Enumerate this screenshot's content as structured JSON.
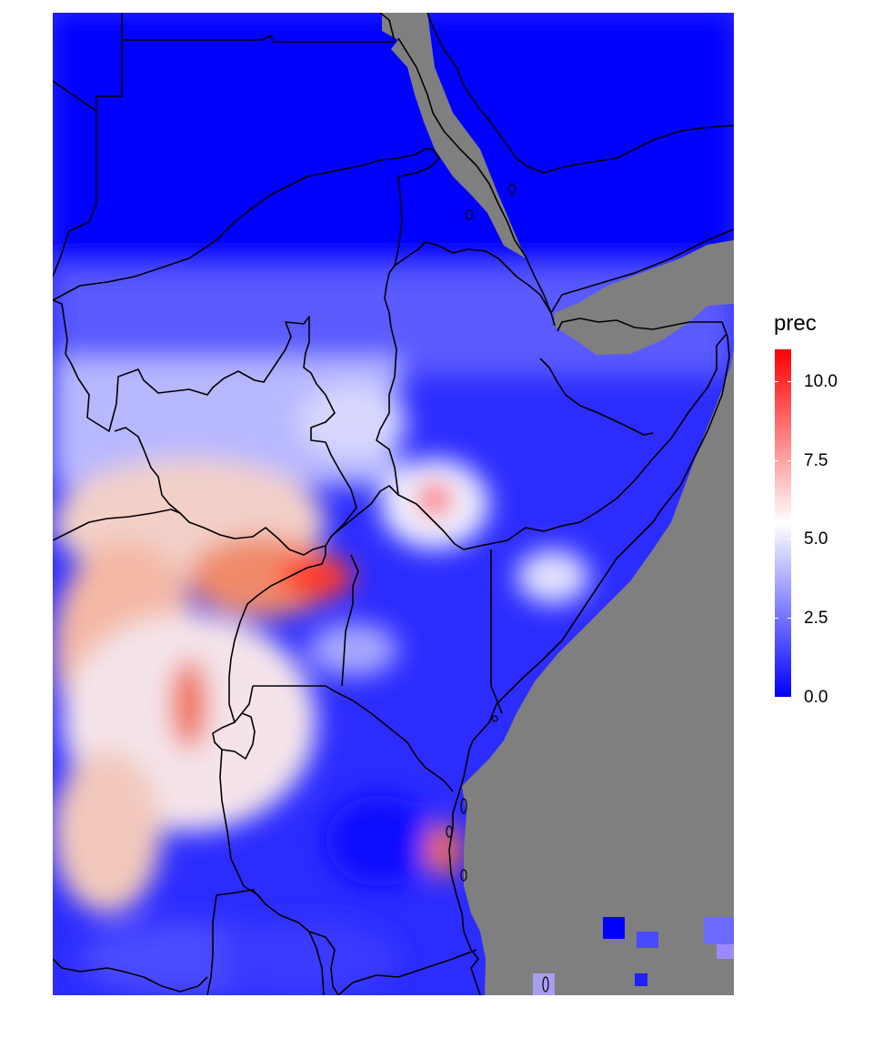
{
  "legend": {
    "title": "prec",
    "min": 0.0,
    "max": 11.0,
    "colors": {
      "low": "#0000ff",
      "mid": "#ffffff",
      "high": "#ff0000",
      "na": "#7f7f7f"
    },
    "ticks": [
      {
        "value": 10.0,
        "label": "10.0"
      },
      {
        "value": 7.5,
        "label": "7.5"
      },
      {
        "value": 5.0,
        "label": "5.0"
      },
      {
        "value": 2.5,
        "label": "2.5"
      },
      {
        "value": 0.0,
        "label": "0.0"
      }
    ]
  }
}
